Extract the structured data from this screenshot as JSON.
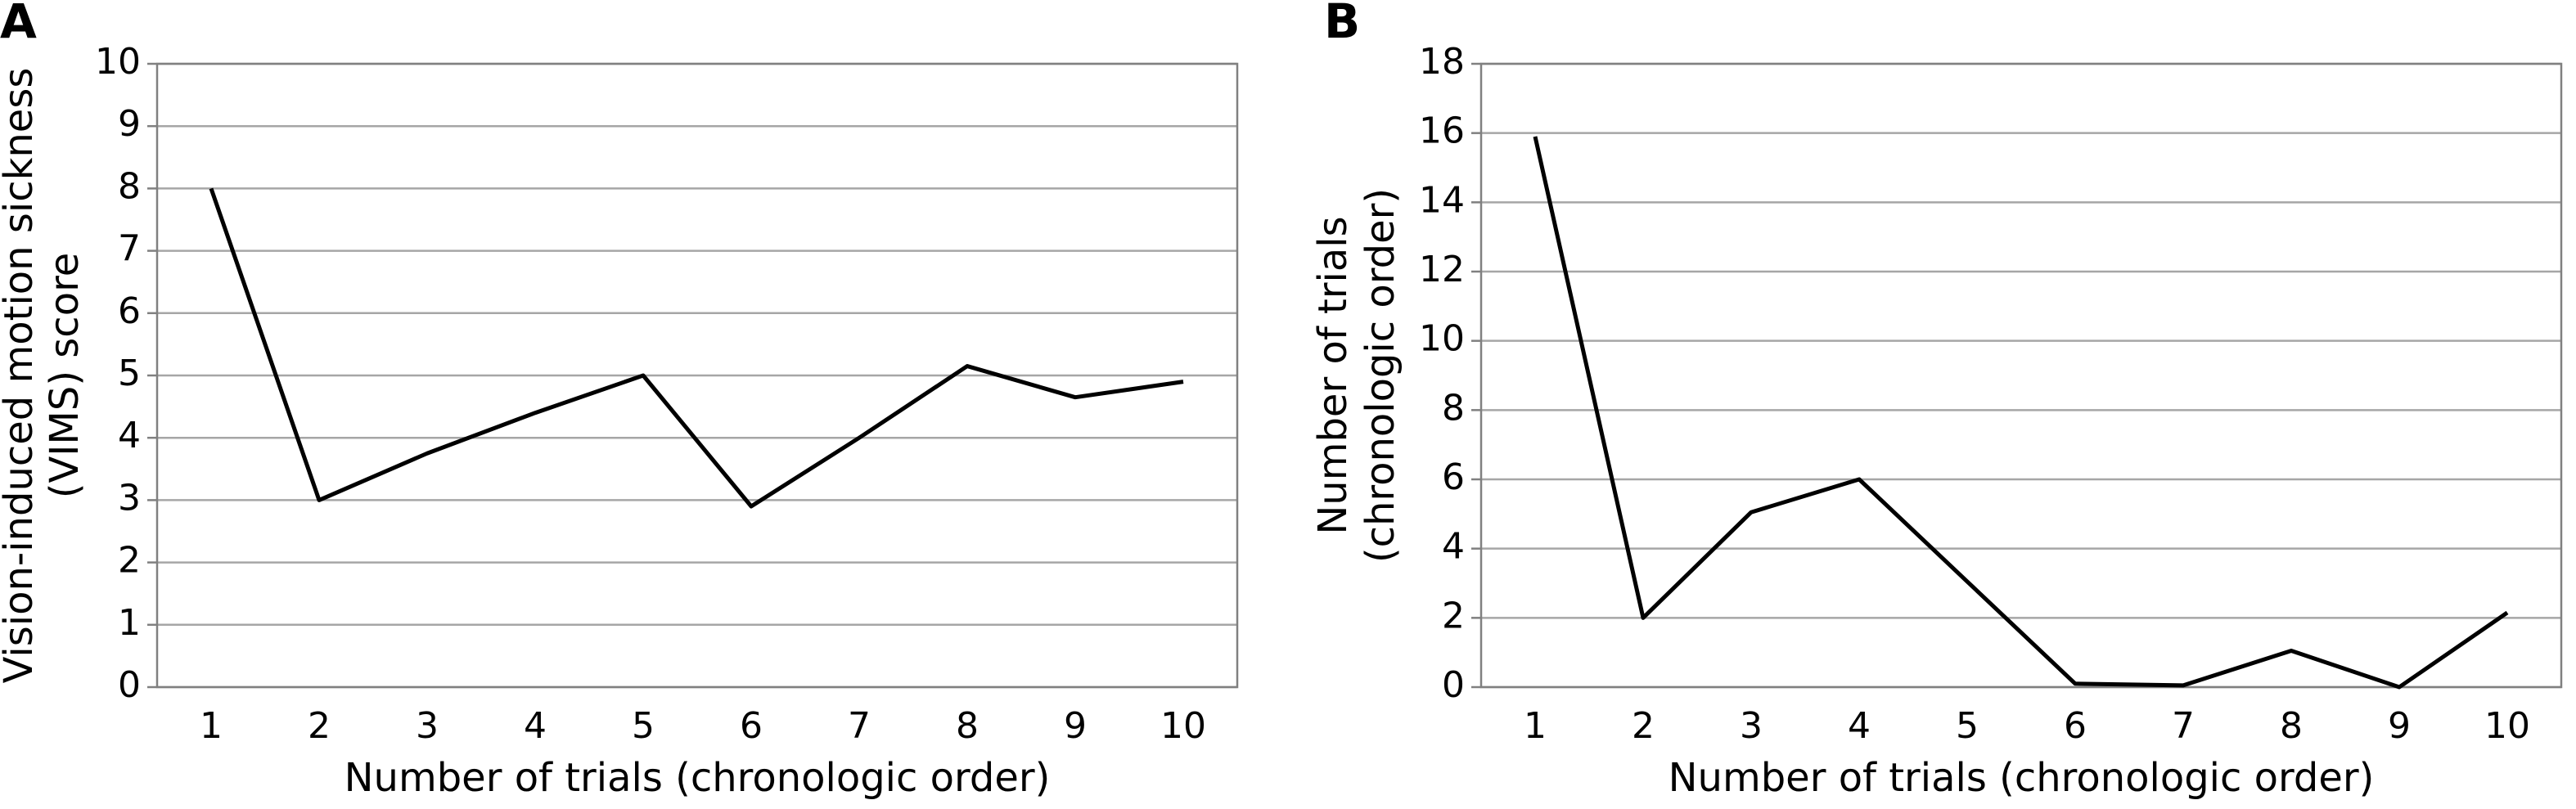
{
  "chart_data": [
    {
      "type": "line",
      "panel": "A",
      "xlabel": "Number of trials (chronologic order)",
      "ylabel": [
        "Vision-induced motion sickness",
        "(VIMS) score"
      ],
      "categories": [
        "1",
        "2",
        "3",
        "4",
        "5",
        "6",
        "7",
        "8",
        "9",
        "10"
      ],
      "values": [
        8,
        3,
        3.75,
        4.4,
        5,
        2.9,
        4.0,
        5.15,
        4.65,
        4.9
      ],
      "color": "#000000",
      "ylim": [
        0,
        10
      ],
      "yticks": [
        0,
        1,
        2,
        3,
        4,
        5,
        6,
        7,
        8,
        9,
        10
      ],
      "grid": true
    },
    {
      "type": "line",
      "panel": "B",
      "xlabel": "Number of trials (chronologic order)",
      "ylabel": [
        "Number of trials",
        "(chronologic order)"
      ],
      "categories": [
        "1",
        "2",
        "3",
        "4",
        "5",
        "6",
        "7",
        "8",
        "9",
        "10"
      ],
      "values": [
        15.9,
        2,
        5.05,
        6,
        3.05,
        0.1,
        0.05,
        1.05,
        0,
        2.15
      ],
      "color": "#000000",
      "ylim": [
        0,
        18
      ],
      "yticks": [
        0,
        2,
        4,
        6,
        8,
        10,
        12,
        14,
        16,
        18
      ],
      "grid": true
    }
  ]
}
